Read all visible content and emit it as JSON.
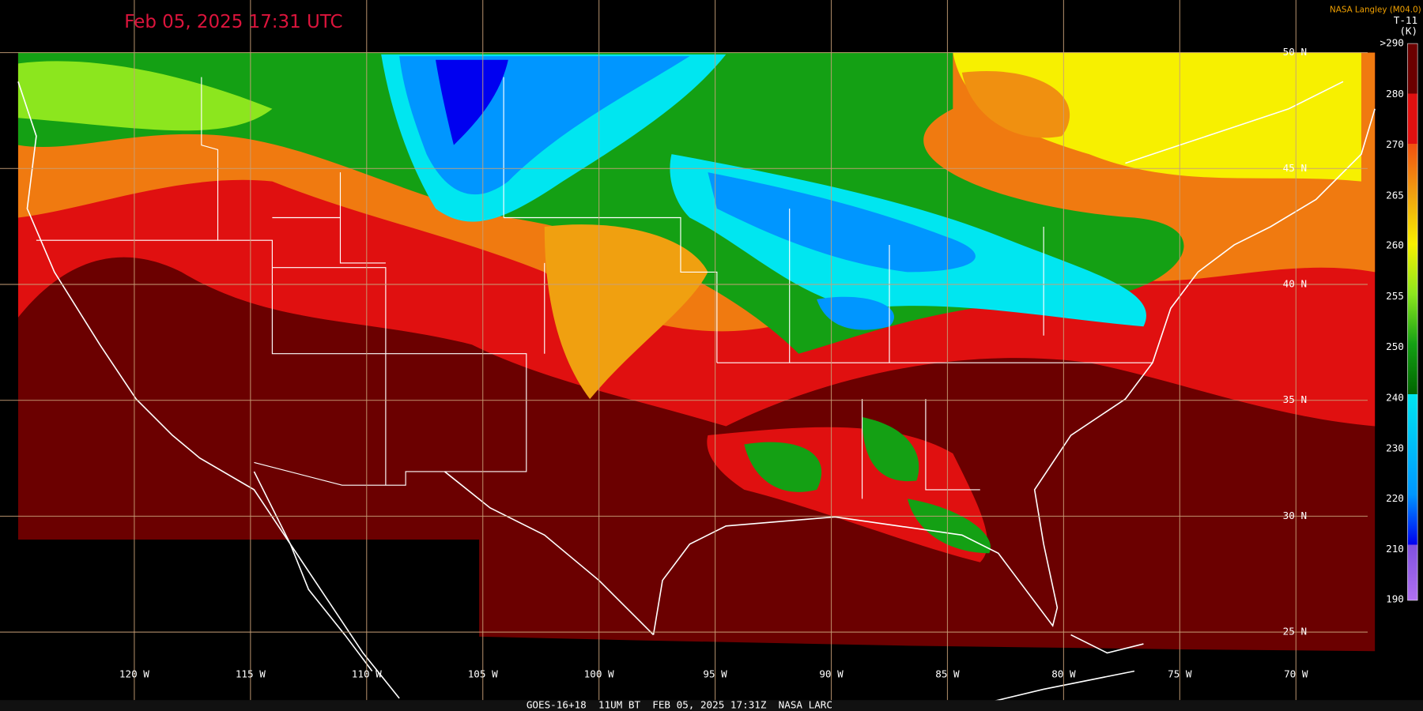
{
  "header": {
    "timestamp": "Feb 05, 2025 17:31 UTC",
    "credit": "NASA Langley (M04.0)"
  },
  "colorbar": {
    "title": "T-11",
    "units": "(K)",
    "labels": [
      ">290",
      "280",
      "270",
      "265",
      "260",
      "255",
      "250",
      "240",
      "230",
      "220",
      "210",
      "190"
    ]
  },
  "latitude_labels": [
    "50 N",
    "45 N",
    "40 N",
    "35 N",
    "30 N",
    "25 N"
  ],
  "longitude_labels": [
    "120 W",
    "115 W",
    "110 W",
    "105 W",
    "100 W",
    "95 W",
    "90 W",
    "85 W",
    "80 W",
    "75 W",
    "70 W"
  ],
  "footer": "GOES-16+18  11UM BT  FEB 05, 2025 17:31Z  NASA LARC"
}
